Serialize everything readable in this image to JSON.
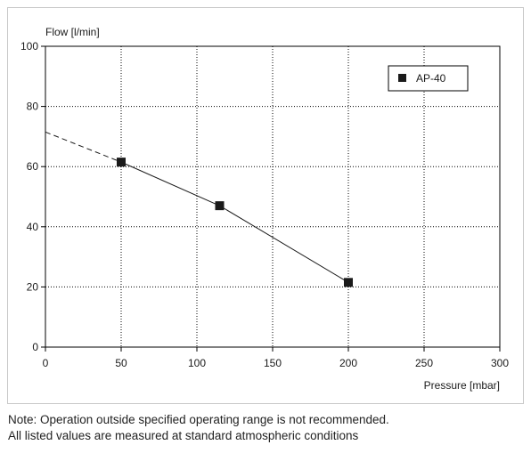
{
  "notes": [
    "Note: Operation outside specified operating range is not recommended.",
    "All listed values are measured at standard atmospheric conditions"
  ],
  "chart_data": {
    "type": "line",
    "title": "",
    "xlabel": "Pressure [mbar]",
    "ylabel": "Flow [l/min]",
    "xlim": [
      0,
      300
    ],
    "ylim": [
      0,
      100
    ],
    "xticks": [
      0,
      50,
      100,
      150,
      200,
      250,
      300
    ],
    "yticks": [
      0,
      20,
      40,
      60,
      80,
      100
    ],
    "grid": true,
    "legend": "top-right",
    "series": [
      {
        "name": "AP-40",
        "x": [
          50,
          115,
          200
        ],
        "y": [
          61.5,
          47,
          21.5
        ],
        "color": "#1a1a1a",
        "marker": "square"
      }
    ],
    "extrapolation": {
      "style": "dashed",
      "x": [
        0,
        50
      ],
      "y": [
        71.5,
        61.5
      ]
    }
  }
}
